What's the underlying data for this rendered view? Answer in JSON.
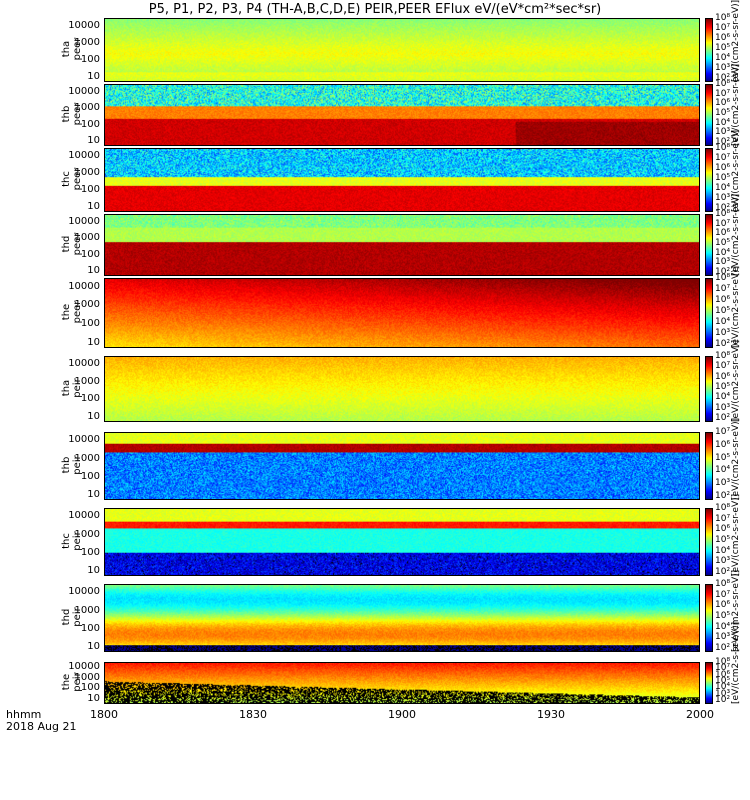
{
  "title": "P5, P1, P2, P3, P4 (TH-A,B,C,D,E) PEIR,PEER EFlux eV/(eV*cm²*sec*sr)",
  "colorbar_unit": "[eV/(cm2-s-sr-eV)]",
  "chart_data": {
    "type": "heatmap",
    "x_tick_labels": [
      "1800",
      "1830",
      "1900",
      "1930",
      "2000"
    ],
    "x_axis_label": "hhmm",
    "date_label": "2018 Aug 21",
    "y_tick_labels": [
      "10",
      "100",
      "1000",
      "10000"
    ],
    "panels": [
      {
        "label1": "tha",
        "label2": "peer",
        "cbar": [
          "10⁸",
          "10⁷",
          "10⁶",
          "10⁵",
          "10⁴",
          "10³",
          "10²"
        ]
      },
      {
        "label1": "thb",
        "label2": "peer",
        "cbar": [
          "10⁸",
          "10⁷",
          "10⁶",
          "10⁵",
          "10⁴",
          "10³",
          "10²"
        ]
      },
      {
        "label1": "thc",
        "label2": "peer",
        "cbar": [
          "10⁸",
          "10⁷",
          "10⁶",
          "10⁵",
          "10⁴",
          "10³",
          "10²"
        ]
      },
      {
        "label1": "thd",
        "label2": "peer",
        "cbar": [
          "10⁸",
          "10⁷",
          "10⁶",
          "10⁵",
          "10⁴",
          "10³",
          "10²"
        ]
      },
      {
        "label1": "the",
        "label2": "peer",
        "cbar": [
          "10⁸",
          "10⁷",
          "10⁶",
          "10⁵",
          "10⁴",
          "10³",
          "10²"
        ]
      },
      {
        "label1": "tha",
        "label2": "peir",
        "cbar": [
          "10⁸",
          "10⁷",
          "10⁶",
          "10⁵",
          "10⁴",
          "10³",
          "10²"
        ]
      },
      {
        "label1": "thb",
        "label2": "peir",
        "cbar": [
          "10⁷",
          "10⁶",
          "10⁵",
          "10⁴",
          "10³",
          "10²"
        ]
      },
      {
        "label1": "thc",
        "label2": "peir",
        "cbar": [
          "10⁸",
          "10⁷",
          "10⁶",
          "10⁵",
          "10⁴",
          "10³",
          "10²"
        ]
      },
      {
        "label1": "thd",
        "label2": "peir",
        "cbar": [
          "10⁸",
          "10⁷",
          "10⁶",
          "10⁵",
          "10⁴",
          "10³",
          "10²"
        ]
      },
      {
        "label1": "the",
        "label2": "peir",
        "cbar": [
          "10⁸",
          "10⁷",
          "10⁶",
          "10⁵",
          "10⁴",
          "10³",
          "10²"
        ]
      }
    ]
  }
}
